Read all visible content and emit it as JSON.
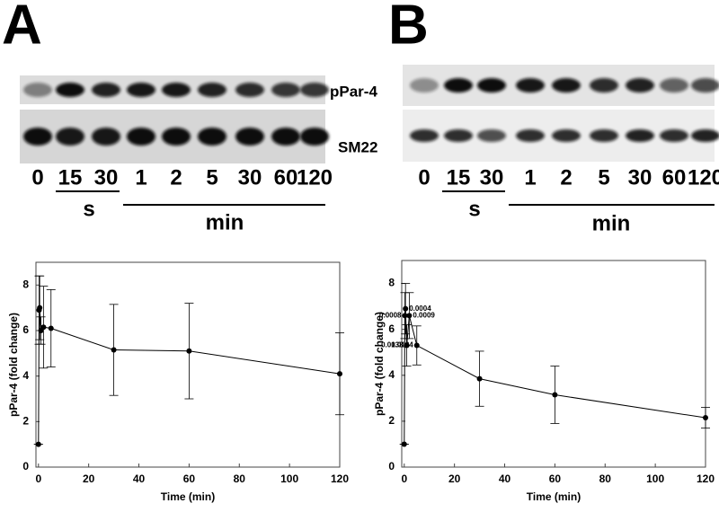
{
  "panels": [
    {
      "letter": "A",
      "blot_labels": [
        "pPar-4",
        "SM22"
      ],
      "lanes": [
        "0",
        "15",
        "30",
        "1",
        "2",
        "5",
        "30",
        "60",
        "120"
      ],
      "unit_labels": [
        "s",
        "min"
      ]
    },
    {
      "letter": "B",
      "lanes": [
        "0",
        "15",
        "30",
        "1",
        "2",
        "5",
        "30",
        "60",
        "120"
      ],
      "unit_labels": [
        "s",
        "min"
      ]
    }
  ],
  "chart_data": [
    {
      "type": "line",
      "x_label": "Time (min)",
      "y_label": "pPar-4 (fold change)",
      "x": [
        0,
        0.25,
        0.5,
        1,
        2,
        5,
        30,
        60,
        120
      ],
      "series": [
        {
          "color": "#000000",
          "values": [
            1,
            6.9,
            7.0,
            6.0,
            6.15,
            6.1,
            5.15,
            5.1,
            4.1
          ],
          "errors": [
            0,
            1.5,
            1.4,
            0.6,
            1.8,
            1.7,
            2.0,
            2.1,
            1.8
          ]
        }
      ],
      "xlim": [
        -1,
        120
      ],
      "ylim": [
        0,
        9
      ],
      "xticks": [
        0,
        20,
        40,
        60,
        80,
        100,
        120
      ],
      "yticks": [
        0,
        2,
        4,
        6,
        8
      ]
    },
    {
      "type": "line",
      "x_label": "Time (min)",
      "y_label": "pPar-4 (fold change)",
      "x": [
        0,
        0.25,
        0.5,
        1,
        2,
        5,
        30,
        60,
        120
      ],
      "series": [
        {
          "color": "#000000",
          "values": [
            1,
            6.6,
            6.9,
            5.3,
            6.6,
            5.3,
            3.85,
            3.15,
            2.15
          ],
          "errors": [
            0,
            1.0,
            1.1,
            0.9,
            1.0,
            0.85,
            1.2,
            1.25,
            0.45
          ],
          "point_labels": [
            null,
            "0.0008",
            "0.0004",
            "0.0138",
            "0.0009",
            "0.0134",
            null,
            null,
            null
          ]
        }
      ],
      "xlim": [
        -1,
        120
      ],
      "ylim": [
        0,
        9
      ],
      "xticks": [
        0,
        20,
        40,
        60,
        80,
        100,
        120
      ],
      "yticks": [
        0,
        2,
        4,
        6,
        8
      ]
    }
  ]
}
